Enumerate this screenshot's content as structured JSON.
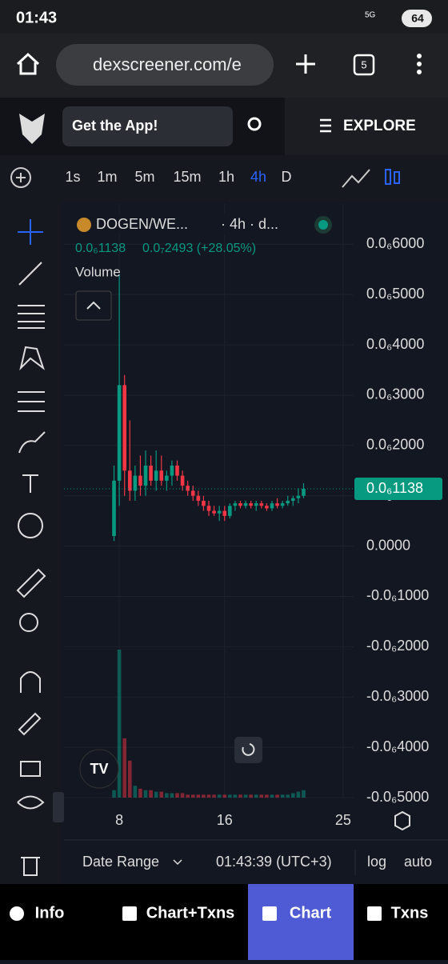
{
  "status_bar": {
    "time": "01:43",
    "network": "5G",
    "battery": "64"
  },
  "browser": {
    "url": "dexscreener.com/e",
    "tab_count": "5"
  },
  "header": {
    "get_app": "Get the App!",
    "explore": "EXPLORE"
  },
  "timeframes": [
    {
      "label": "1s"
    },
    {
      "label": "1m"
    },
    {
      "label": "5m"
    },
    {
      "label": "15m"
    },
    {
      "label": "1h"
    },
    {
      "label": "4h",
      "selected": true
    },
    {
      "label": "D"
    }
  ],
  "chart": {
    "symbol": "DOGEN/WE...",
    "interval": "· 4h · d...",
    "last_price": "0.0₆1138",
    "change": "0.0₇2493 (+28.05%)",
    "volume_label": "Volume",
    "price_tag": "0.0₆1138",
    "up_color": "#089981",
    "down_color": "#f23645",
    "xlim": [
      3.8,
      25.8
    ],
    "xticks": [
      8,
      16,
      25
    ],
    "ylim": [
      -5e-07,
      6.8e-07
    ],
    "yticks": [
      {
        "value": 6e-07,
        "label": "0.0₆6000"
      },
      {
        "value": 5e-07,
        "label": "0.0₆5000"
      },
      {
        "value": 4e-07,
        "label": "0.0₆4000"
      },
      {
        "value": 3e-07,
        "label": "0.0₆3000"
      },
      {
        "value": 2e-07,
        "label": "0.0₆2000"
      },
      {
        "value": 1e-07,
        "label": "0.0₆1000"
      },
      {
        "value": 0,
        "label": "0.0000"
      },
      {
        "value": -1e-07,
        "label": "-0.0₆1000"
      },
      {
        "value": -2e-07,
        "label": "-0.0₆2000"
      },
      {
        "value": -3e-07,
        "label": "-0.0₆3000"
      },
      {
        "value": -4e-07,
        "label": "-0.0₆4000"
      },
      {
        "value": -5e-07,
        "label": "-0.0₆5000"
      }
    ],
    "candles": [
      [
        7.6,
        2e-08,
        1.6e-07,
        1e-08,
        1.3e-07
      ],
      [
        8.0,
        1.3e-07,
        5.4e-07,
        8e-08,
        3.2e-07
      ],
      [
        8.4,
        3.2e-07,
        3.4e-07,
        1e-07,
        1.5e-07
      ],
      [
        8.8,
        1.5e-07,
        2.5e-07,
        9e-08,
        1.1e-07
      ],
      [
        9.2,
        1.1e-07,
        1.6e-07,
        9e-08,
        1.4e-07
      ],
      [
        9.6,
        1.4e-07,
        1.8e-07,
        1e-07,
        1.2e-07
      ],
      [
        10.0,
        1.2e-07,
        1.9e-07,
        1e-07,
        1.6e-07
      ],
      [
        10.4,
        1.6e-07,
        1.8e-07,
        1.2e-07,
        1.3e-07
      ],
      [
        10.8,
        1.3e-07,
        1.9e-07,
        1.1e-07,
        1.5e-07
      ],
      [
        11.2,
        1.5e-07,
        1.8e-07,
        1.2e-07,
        1.3e-07
      ],
      [
        11.6,
        1.3e-07,
        1.5e-07,
        1.1e-07,
        1.4e-07
      ],
      [
        12.0,
        1.4e-07,
        1.7e-07,
        1.2e-07,
        1.6e-07
      ],
      [
        12.4,
        1.6e-07,
        1.7e-07,
        1.3e-07,
        1.4e-07
      ],
      [
        12.8,
        1.4e-07,
        1.5e-07,
        1.1e-07,
        1.2e-07
      ],
      [
        13.2,
        1.2e-07,
        1.3e-07,
        1e-07,
        1.1e-07
      ],
      [
        13.6,
        1.1e-07,
        1.2e-07,
        9e-08,
        1e-07
      ],
      [
        14.0,
        1e-07,
        1.1e-07,
        8e-08,
        9e-08
      ],
      [
        14.4,
        9e-08,
        1e-07,
        7e-08,
        8e-08
      ],
      [
        14.8,
        8e-08,
        9e-08,
        6e-08,
        7e-08
      ],
      [
        15.2,
        7e-08,
        8e-08,
        6e-08,
        6.5e-08
      ],
      [
        15.6,
        6.5e-08,
        8e-08,
        5e-08,
        7e-08
      ],
      [
        16.0,
        7e-08,
        8e-08,
        5e-08,
        6e-08
      ],
      [
        16.4,
        6e-08,
        8.5e-08,
        5.5e-08,
        8e-08
      ],
      [
        16.8,
        8e-08,
        9e-08,
        7e-08,
        8.5e-08
      ],
      [
        17.2,
        8.5e-08,
        9e-08,
        7.5e-08,
        8e-08
      ],
      [
        17.6,
        8e-08,
        9e-08,
        7.5e-08,
        8.5e-08
      ],
      [
        18.0,
        8.5e-08,
        9e-08,
        7.5e-08,
        8e-08
      ],
      [
        18.4,
        8e-08,
        9e-08,
        7e-08,
        8.5e-08
      ],
      [
        18.8,
        8.5e-08,
        9e-08,
        7.5e-08,
        8e-08
      ],
      [
        19.2,
        8e-08,
        8.5e-08,
        7e-08,
        7.5e-08
      ],
      [
        19.6,
        7.5e-08,
        9e-08,
        7e-08,
        8.5e-08
      ],
      [
        20.0,
        8.5e-08,
        9.5e-08,
        7.5e-08,
        8e-08
      ],
      [
        20.4,
        8e-08,
        9e-08,
        7.5e-08,
        8.5e-08
      ],
      [
        20.8,
        8.5e-08,
        1e-07,
        8e-08,
        9e-08
      ],
      [
        21.2,
        9e-08,
        1e-07,
        8e-08,
        9.5e-08
      ],
      [
        21.6,
        9.5e-08,
        1.15e-07,
        8.5e-08,
        1e-07
      ],
      [
        22.0,
        1e-07,
        1.25e-07,
        9.5e-08,
        1.138e-07
      ]
    ],
    "volume": [
      5,
      100,
      40,
      25,
      8,
      6,
      5,
      5,
      4,
      4,
      3,
      3,
      3,
      3,
      2,
      2,
      2,
      2,
      2,
      2,
      2,
      2,
      2,
      2,
      2,
      2,
      2,
      2,
      2,
      2,
      2,
      2,
      2,
      2,
      3,
      4,
      5
    ]
  },
  "footer": {
    "date_range": "Date Range",
    "time": "01:43:39 (UTC+3)",
    "log": "log",
    "auto": "auto"
  },
  "nav": [
    {
      "label": "Info"
    },
    {
      "label": "Chart+Txns"
    },
    {
      "label": "Chart",
      "selected": true
    },
    {
      "label": "Txns"
    }
  ]
}
